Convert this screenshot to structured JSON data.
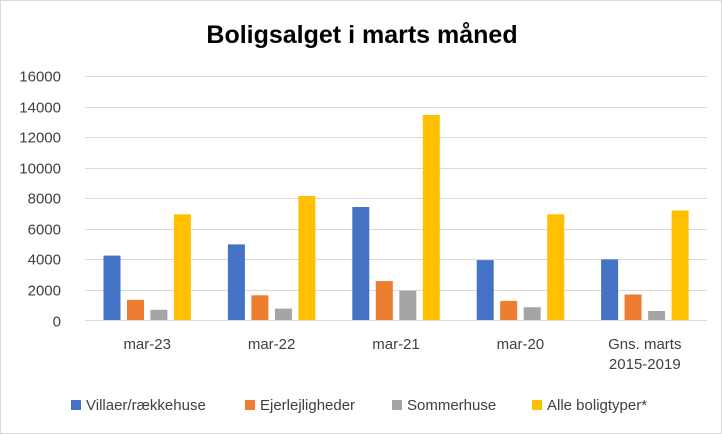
{
  "chart_data": {
    "type": "bar",
    "title": "Boligsalget i marts måned",
    "xlabel": "",
    "ylabel": "",
    "ylim": [
      0,
      16000
    ],
    "yticks": [
      0,
      2000,
      4000,
      6000,
      8000,
      10000,
      12000,
      14000,
      16000
    ],
    "grid": true,
    "legend_position": "bottom",
    "categories": [
      [
        "mar-23"
      ],
      [
        "mar-22"
      ],
      [
        "mar-21"
      ],
      [
        "mar-20"
      ],
      [
        "Gns. marts",
        "2015-2019"
      ]
    ],
    "series": [
      {
        "name": "Villaer/rækkehuse",
        "color": "#4472C4",
        "values": [
          4250,
          4980,
          7430,
          3950,
          4000
        ]
      },
      {
        "name": "Ejerlejligheder",
        "color": "#ED7D31",
        "values": [
          1350,
          1650,
          2580,
          1280,
          1700
        ]
      },
      {
        "name": "Sommerhuse",
        "color": "#A5A5A5",
        "values": [
          700,
          780,
          1950,
          870,
          620
        ]
      },
      {
        "name": "Alle boligtyper*",
        "color": "#FFC000",
        "values": [
          6950,
          8150,
          13450,
          6950,
          7200
        ]
      }
    ]
  }
}
